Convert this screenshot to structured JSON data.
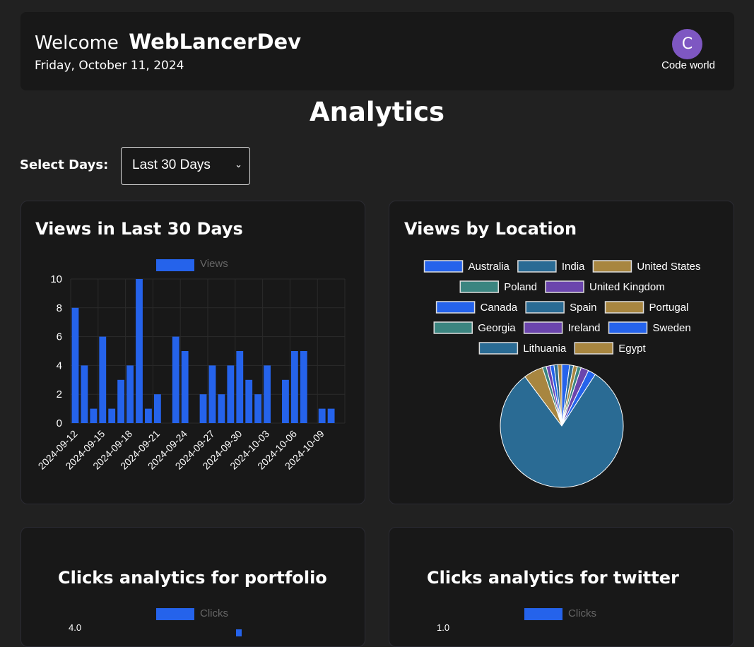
{
  "header": {
    "welcome_prefix": "Welcome",
    "username": "WebLancerDev",
    "date": "Friday, October 11, 2024",
    "avatar_initial": "C",
    "avatar_name": "Code world"
  },
  "page": {
    "title": "Analytics",
    "select_label": "Select Days:",
    "select_value": "Last 30 Days"
  },
  "colors": {
    "bar": "#2563eb",
    "background": "#212121",
    "card": "#181818",
    "avatar": "#7e57c2"
  },
  "cards": {
    "views": {
      "title": "Views in Last 30 Days",
      "legend": "Views"
    },
    "location": {
      "title": "Views by Location"
    },
    "portfolio": {
      "title": "Clicks analytics for portfolio",
      "legend": "Clicks",
      "top_tick": "4.0"
    },
    "twitter": {
      "title": "Clicks analytics for twitter",
      "legend": "Clicks",
      "top_tick": "1.0"
    }
  },
  "chart_data": [
    {
      "type": "bar",
      "title": "Views in Last 30 Days",
      "legend": [
        "Views"
      ],
      "ylim": [
        0,
        10
      ],
      "yticks": [
        0,
        2,
        4,
        6,
        8,
        10
      ],
      "xtick_labels": [
        "2024-09-12",
        "2024-09-15",
        "2024-09-18",
        "2024-09-21",
        "2024-09-24",
        "2024-09-27",
        "2024-09-30",
        "2024-10-03",
        "2024-10-06",
        "2024-10-09"
      ],
      "x": [
        "2024-09-12",
        "2024-09-13",
        "2024-09-14",
        "2024-09-15",
        "2024-09-16",
        "2024-09-17",
        "2024-09-18",
        "2024-09-19",
        "2024-09-20",
        "2024-09-21",
        "2024-09-22",
        "2024-09-23",
        "2024-09-24",
        "2024-09-25",
        "2024-09-26",
        "2024-09-27",
        "2024-09-28",
        "2024-09-29",
        "2024-09-30",
        "2024-10-01",
        "2024-10-02",
        "2024-10-03",
        "2024-10-04",
        "2024-10-05",
        "2024-10-06",
        "2024-10-07",
        "2024-10-08",
        "2024-10-09",
        "2024-10-10",
        "2024-10-11"
      ],
      "values": [
        8,
        4,
        1,
        6,
        1,
        3,
        4,
        10,
        1,
        2,
        0,
        6,
        5,
        0,
        2,
        4,
        2,
        4,
        5,
        3,
        2,
        4,
        0,
        3,
        5,
        5,
        0,
        1,
        1,
        0
      ]
    },
    {
      "type": "pie",
      "title": "Views by Location",
      "legend_placement": "top",
      "slices": [
        {
          "label": "Australia",
          "color": "#2563eb",
          "value": 2
        },
        {
          "label": "India",
          "color": "#2a6b94",
          "value": 1
        },
        {
          "label": "United States",
          "color": "#a88640",
          "value": 1
        },
        {
          "label": "Poland",
          "color": "#3b8580",
          "value": 1
        },
        {
          "label": "United Kingdom",
          "color": "#6b45ad",
          "value": 2
        },
        {
          "label": "Canada",
          "color": "#2563eb",
          "value": 2
        },
        {
          "label": "Spain",
          "color": "#2a6b94",
          "value": 79
        },
        {
          "label": "Portugal",
          "color": "#a88640",
          "value": 5
        },
        {
          "label": "Georgia",
          "color": "#3b8580",
          "value": 1
        },
        {
          "label": "Ireland",
          "color": "#6b45ad",
          "value": 1
        },
        {
          "label": "Sweden",
          "color": "#2563eb",
          "value": 1
        },
        {
          "label": "Lithuania",
          "color": "#2a6b94",
          "value": 1
        },
        {
          "label": "Egypt",
          "color": "#a88640",
          "value": 1
        }
      ]
    },
    {
      "type": "bar",
      "title": "Clicks analytics for portfolio",
      "legend": [
        "Clicks"
      ],
      "ylim": [
        0,
        4
      ]
    },
    {
      "type": "bar",
      "title": "Clicks analytics for twitter",
      "legend": [
        "Clicks"
      ],
      "ylim": [
        0,
        1
      ]
    }
  ]
}
